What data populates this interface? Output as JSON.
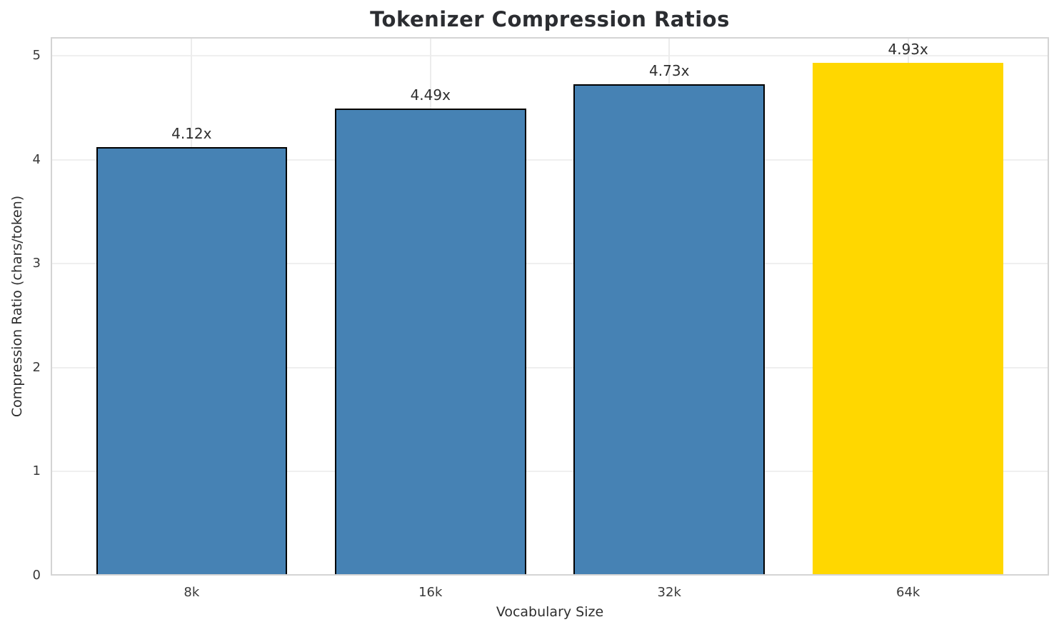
{
  "chart_data": {
    "type": "bar",
    "title": "Tokenizer Compression Ratios",
    "xlabel": "Vocabulary Size",
    "ylabel": "Compression Ratio (chars/token)",
    "categories": [
      "8k",
      "16k",
      "32k",
      "64k"
    ],
    "values": [
      4.12,
      4.49,
      4.73,
      4.93
    ],
    "value_labels": [
      "4.12x",
      "4.49x",
      "4.73x",
      "4.93x"
    ],
    "bar_colors": [
      "#4682B4",
      "#4682B4",
      "#4682B4",
      "#FFD700"
    ],
    "bar_edge_colors": [
      "#000000",
      "#000000",
      "#000000",
      "none"
    ],
    "highlight_index": 3,
    "yticks": [
      0,
      1,
      2,
      3,
      4,
      5
    ],
    "ylim": [
      0,
      5.18
    ],
    "xlim": [
      -0.59,
      3.59
    ],
    "bar_width_units": 0.8,
    "grid": true,
    "legend_position": "none",
    "grid_color": "#efefef",
    "frame_color": "#d4d4d4"
  }
}
